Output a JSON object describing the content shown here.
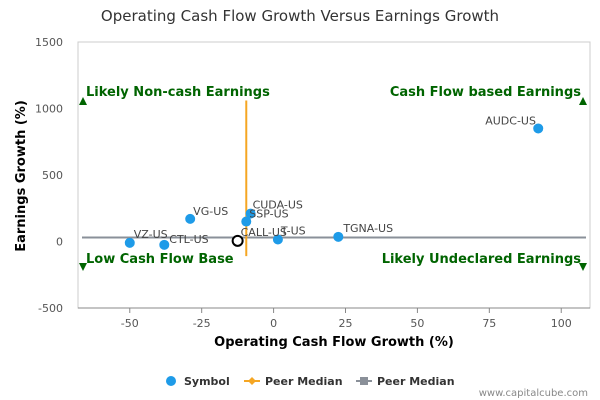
{
  "chart_data": {
    "type": "scatter",
    "title": "Operating Cash Flow Growth Versus Earnings Growth",
    "xlabel": "Operating Cash Flow Growth (%)",
    "ylabel": "Earnings Growth (%)",
    "xlim": [
      -68,
      110
    ],
    "ylim": [
      -500,
      1500
    ],
    "xticks": [
      -50,
      -25,
      0,
      25,
      50,
      75,
      100
    ],
    "yticks": [
      -500,
      0,
      500,
      1000,
      1500
    ],
    "grid": false,
    "legend_position": "bottom",
    "symbol_color": "#1e9be8",
    "peer_median_x_color": "#f5a623",
    "peer_median_y_color": "#8a9099",
    "quadrant_color": "#006400",
    "points": [
      {
        "label": "AUDC-US",
        "x": 92,
        "y": 850
      },
      {
        "label": "TGNA-US",
        "x": 22.5,
        "y": 35
      },
      {
        "label": "CUDA-US",
        "x": -8,
        "y": 210
      },
      {
        "label": "SSP-US",
        "x": -9.5,
        "y": 150
      },
      {
        "label": "T-US",
        "x": 1.5,
        "y": 15
      },
      {
        "label": "VG-US",
        "x": -29,
        "y": 170
      },
      {
        "label": "VZ-US",
        "x": -50,
        "y": -10
      },
      {
        "label": "CTL-US",
        "x": -38,
        "y": -25
      }
    ],
    "highlight": {
      "label": "CALL-US",
      "x": -12.5,
      "y": 5
    },
    "peer_median_x": -9.5,
    "peer_median_y": 30,
    "quadrant_labels": [
      {
        "text": "Likely Non-cash Earnings",
        "arrow": "up"
      },
      {
        "text": "Cash Flow based Earnings",
        "arrow": "up"
      },
      {
        "text": "Low Cash Flow Base",
        "arrow": "down"
      },
      {
        "text": "Likely Undeclared Earnings",
        "arrow": "down"
      }
    ],
    "legend": [
      {
        "label": "Symbol"
      },
      {
        "label": "Peer Median"
      },
      {
        "label": "Peer Median"
      }
    ]
  },
  "credit": "www.capitalcube.com"
}
